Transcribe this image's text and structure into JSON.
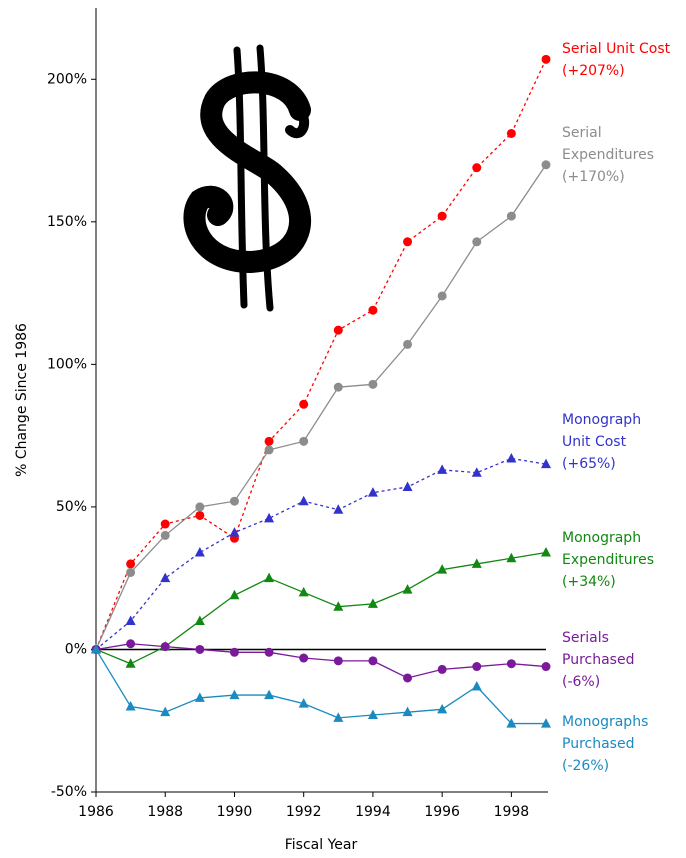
{
  "chart_data": {
    "type": "line",
    "x_label": "Fiscal Year",
    "y_label": "% Change Since 1986",
    "x": [
      1986,
      1987,
      1988,
      1989,
      1990,
      1991,
      1992,
      1993,
      1994,
      1995,
      1996,
      1997,
      1998,
      1999
    ],
    "xlim": [
      1986,
      1999
    ],
    "xticks": [
      1986,
      1988,
      1990,
      1992,
      1994,
      1996,
      1998
    ],
    "ylim": [
      -50,
      225
    ],
    "yticks": [
      {
        "value": -50,
        "label": "-50%"
      },
      {
        "value": 0,
        "label": "0%"
      },
      {
        "value": 50,
        "label": "50%"
      },
      {
        "value": 100,
        "label": "100%"
      },
      {
        "value": 150,
        "label": "150%"
      },
      {
        "value": 200,
        "label": "200%"
      }
    ],
    "zero_line": true,
    "series": [
      {
        "name": [
          "Serial Unit Cost"
        ],
        "color": "#ff0000",
        "dashed": true,
        "marker": "circle",
        "values": [
          0,
          30,
          44,
          47,
          39,
          73,
          86,
          112,
          119,
          143,
          152,
          169,
          181,
          207
        ],
        "value_labels": [
          null,
          null,
          null,
          null,
          null,
          null,
          null,
          null,
          null,
          null,
          null,
          null,
          null,
          "(+207%)"
        ]
      },
      {
        "name": [
          "Serial",
          "Expenditures"
        ],
        "color": "#8c8c8c",
        "dashed": false,
        "marker": "circle",
        "values": [
          0,
          27,
          40,
          50,
          52,
          70,
          73,
          92,
          93,
          107,
          124,
          143,
          152,
          170
        ],
        "value_labels": [
          null,
          null,
          null,
          null,
          null,
          null,
          null,
          null,
          null,
          null,
          null,
          null,
          null,
          "(+170%)"
        ]
      },
      {
        "name": [
          "Monograph",
          "Unit Cost"
        ],
        "color": "#3333cc",
        "dashed": true,
        "marker": "triangle",
        "values": [
          0,
          10,
          25,
          34,
          41,
          46,
          52,
          49,
          55,
          57,
          63,
          62,
          67,
          65
        ],
        "value_labels": [
          null,
          null,
          null,
          null,
          null,
          null,
          null,
          null,
          null,
          null,
          null,
          null,
          null,
          "(+65%)"
        ]
      },
      {
        "name": [
          "Monograph",
          "Expenditures"
        ],
        "color": "#118811",
        "dashed": false,
        "marker": "triangle",
        "values": [
          0,
          -5,
          1,
          10,
          19,
          25,
          20,
          15,
          16,
          21,
          28,
          30,
          32,
          34
        ],
        "value_labels": [
          null,
          null,
          null,
          null,
          null,
          null,
          null,
          null,
          null,
          null,
          null,
          null,
          null,
          "(+34%)"
        ]
      },
      {
        "name": [
          "Serials",
          "Purchased"
        ],
        "color": "#7a1a9a",
        "dashed": false,
        "marker": "circle",
        "values": [
          0,
          2,
          1,
          0,
          -1,
          -1,
          -3,
          -4,
          -4,
          -10,
          -7,
          -6,
          -5,
          -6
        ],
        "value_labels": [
          null,
          null,
          null,
          null,
          null,
          null,
          null,
          null,
          null,
          null,
          null,
          null,
          null,
          "(-6%)"
        ]
      },
      {
        "name": [
          "Monographs",
          "Purchased"
        ],
        "color": "#1a8ac0",
        "dashed": false,
        "marker": "triangle",
        "values": [
          0,
          -20,
          -22,
          -17,
          -16,
          -16,
          -19,
          -24,
          -23,
          -22,
          -21,
          -13,
          -26,
          -26
        ],
        "value_labels": [
          null,
          null,
          null,
          null,
          null,
          null,
          null,
          null,
          null,
          null,
          null,
          null,
          null,
          "(-26%)"
        ]
      }
    ]
  }
}
